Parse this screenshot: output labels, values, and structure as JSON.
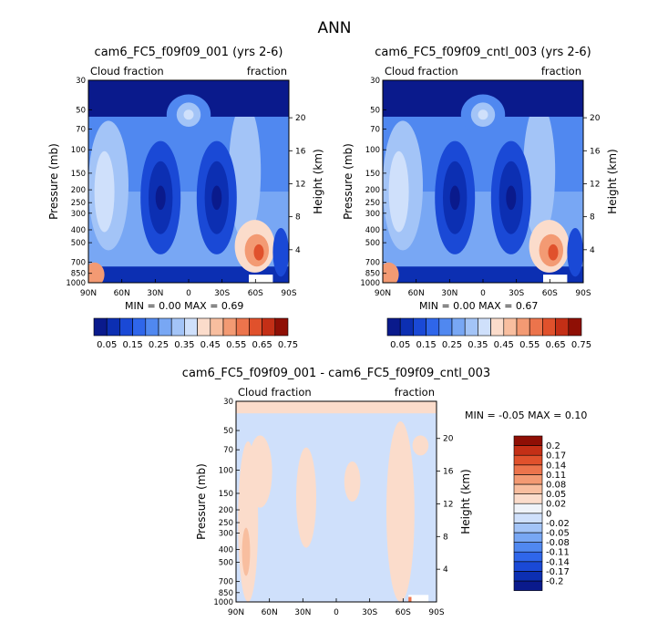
{
  "figure_title": "ANN",
  "chart_data": [
    {
      "type": "heatmap",
      "title": "cam6_FC5_f09f09_001 (yrs 2-6)",
      "left_label": "Cloud fraction",
      "right_label": "fraction",
      "xlabel": "",
      "ylabel": "Pressure (mb)",
      "y2label": "Height (km)",
      "x_ticks": [
        "90N",
        "60N",
        "30N",
        "0",
        "30S",
        "60S",
        "90S"
      ],
      "y_ticks": [
        30,
        50,
        70,
        100,
        150,
        200,
        250,
        300,
        400,
        500,
        700,
        850,
        1000
      ],
      "y_tick_labels": [
        "30",
        "50",
        "70",
        "100",
        "150",
        "200",
        "250",
        "300",
        "400",
        "500",
        "700",
        "850",
        "1000"
      ],
      "height_ticks": [
        4,
        8,
        12,
        16,
        20
      ],
      "height_tick_labels": [
        "4",
        "8",
        "12",
        "16",
        "20"
      ],
      "y_scale": "log",
      "ylim": [
        1000,
        30
      ],
      "stats_text": "MIN =    0.00   MAX =    0.69",
      "min": 0.0,
      "max": 0.69,
      "colorbar_levels": [
        0.05,
        0.1,
        0.15,
        0.2,
        0.25,
        0.3,
        0.35,
        0.4,
        0.45,
        0.5,
        0.55,
        0.6,
        0.65,
        0.7,
        0.75
      ],
      "colorbar_labels": [
        "0.05",
        "0.15",
        "0.25",
        "0.35",
        "0.45",
        "0.55",
        "0.65",
        "0.75"
      ],
      "colors": [
        "#0a1a8c",
        "#0c2fb2",
        "#1a49d6",
        "#2f66ea",
        "#5088f0",
        "#78a7f4",
        "#a3c4f7",
        "#cfe0fb",
        "#fbdccb",
        "#f8be9f",
        "#f39a73",
        "#ec744c",
        "#e0512c",
        "#c42f16",
        "#8f0f05"
      ]
    },
    {
      "type": "heatmap",
      "title": "cam6_FC5_f09f09_cntl_003 (yrs 2-6)",
      "left_label": "Cloud fraction",
      "right_label": "fraction",
      "xlabel": "",
      "ylabel": "Pressure (mb)",
      "y2label": "Height (km)",
      "x_ticks": [
        "90N",
        "60N",
        "30N",
        "0",
        "30S",
        "60S",
        "90S"
      ],
      "y_ticks": [
        30,
        50,
        70,
        100,
        150,
        200,
        250,
        300,
        400,
        500,
        700,
        850,
        1000
      ],
      "y_tick_labels": [
        "30",
        "50",
        "70",
        "100",
        "150",
        "200",
        "250",
        "300",
        "400",
        "500",
        "700",
        "850",
        "1000"
      ],
      "height_ticks": [
        4,
        8,
        12,
        16,
        20
      ],
      "height_tick_labels": [
        "4",
        "8",
        "12",
        "16",
        "20"
      ],
      "y_scale": "log",
      "ylim": [
        1000,
        30
      ],
      "stats_text": "MIN =    0.00   MAX =    0.67",
      "min": 0.0,
      "max": 0.67,
      "colorbar_levels": [
        0.05,
        0.1,
        0.15,
        0.2,
        0.25,
        0.3,
        0.35,
        0.4,
        0.45,
        0.5,
        0.55,
        0.6,
        0.65,
        0.7,
        0.75
      ],
      "colorbar_labels": [
        "0.05",
        "0.15",
        "0.25",
        "0.35",
        "0.45",
        "0.55",
        "0.65",
        "0.75"
      ],
      "colors": [
        "#0a1a8c",
        "#0c2fb2",
        "#1a49d6",
        "#2f66ea",
        "#5088f0",
        "#78a7f4",
        "#a3c4f7",
        "#cfe0fb",
        "#fbdccb",
        "#f8be9f",
        "#f39a73",
        "#ec744c",
        "#e0512c",
        "#c42f16",
        "#8f0f05"
      ]
    },
    {
      "type": "heatmap",
      "title": "cam6_FC5_f09f09_001 - cam6_FC5_f09f09_cntl_003",
      "left_label": "Cloud fraction",
      "right_label": "fraction",
      "xlabel": "",
      "ylabel": "Pressure (mb)",
      "y2label": "Height (km)",
      "x_ticks": [
        "90N",
        "60N",
        "30N",
        "0",
        "30S",
        "60S",
        "90S"
      ],
      "y_ticks": [
        30,
        50,
        70,
        100,
        150,
        200,
        250,
        300,
        400,
        500,
        700,
        850,
        1000
      ],
      "y_tick_labels": [
        "30",
        "50",
        "70",
        "100",
        "150",
        "200",
        "250",
        "300",
        "400",
        "500",
        "700",
        "850",
        "1000"
      ],
      "height_ticks": [
        4,
        8,
        12,
        16,
        20
      ],
      "height_tick_labels": [
        "4",
        "8",
        "12",
        "16",
        "20"
      ],
      "y_scale": "log",
      "ylim": [
        1000,
        30
      ],
      "stats_text": "MIN =    -0.05   MAX =    0.10",
      "min": -0.05,
      "max": 0.1,
      "colorbar_levels": [
        -0.2,
        -0.17,
        -0.14,
        -0.11,
        -0.08,
        -0.05,
        -0.02,
        0,
        0.02,
        0.05,
        0.08,
        0.11,
        0.14,
        0.17,
        0.2
      ],
      "colorbar_labels": [
        "-0.2",
        "-0.17",
        "-0.14",
        "-0.11",
        "-0.08",
        "-0.05",
        "-0.02",
        "0",
        "0.02",
        "0.05",
        "0.08",
        "0.11",
        "0.14",
        "0.17",
        "0.2"
      ],
      "colors": [
        "#0a1a8c",
        "#0c2fb2",
        "#1a49d6",
        "#2f66ea",
        "#5088f0",
        "#78a7f4",
        "#a3c4f7",
        "#cfe0fb",
        "#eff3f9",
        "#fbdccb",
        "#f8be9f",
        "#f39a73",
        "#ec744c",
        "#e0512c",
        "#c42f16",
        "#8f0f05"
      ]
    }
  ]
}
